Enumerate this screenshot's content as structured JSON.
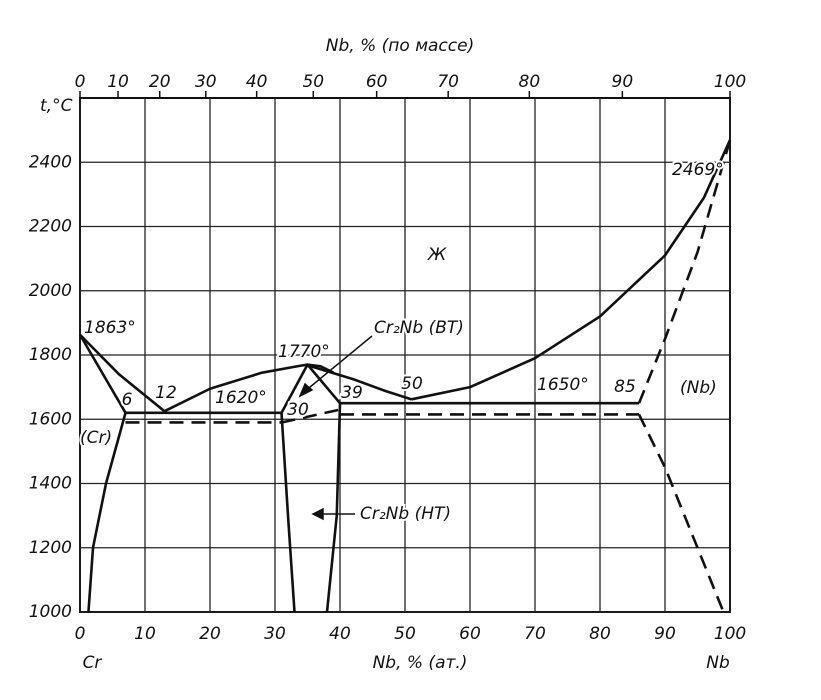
{
  "chart_data": {
    "type": "line",
    "x2label": "Nb, % (по массе)",
    "ylabel": "t,°C",
    "xlabel": "Nb, % (ат.)",
    "xlabel_left": "Cr",
    "xlabel_right": "Nb",
    "xlim": [
      0,
      100
    ],
    "ylim": [
      1000,
      2600
    ],
    "xticks": [
      0,
      10,
      20,
      30,
      40,
      50,
      60,
      70,
      80,
      90,
      100
    ],
    "yticks": [
      1000,
      1200,
      1400,
      1600,
      1800,
      2000,
      2200,
      2400
    ],
    "x2ticks": [
      0,
      {
        "value": 5.85,
        "label": "10"
      },
      {
        "value": 12.27,
        "label": "20"
      },
      {
        "value": 19.35,
        "label": "30"
      },
      {
        "value": 27.18,
        "label": "40"
      },
      {
        "value": 35.89,
        "label": "50"
      },
      {
        "value": 45.64,
        "label": "60"
      },
      {
        "value": 56.64,
        "label": "70"
      },
      {
        "value": 69.13,
        "label": "80"
      },
      {
        "value": 83.44,
        "label": "90"
      },
      100
    ],
    "grid": true,
    "color": "#111111",
    "series": [
      {
        "x": [
          0,
          6,
          13
        ],
        "values": [
          1863,
          1740,
          1625
        ]
      },
      {
        "x": [
          13,
          20,
          28,
          34,
          35,
          37,
          39
        ],
        "values": [
          1625,
          1695,
          1745,
          1767,
          1770,
          1765,
          1745
        ]
      },
      {
        "x": [
          35,
          42,
          47,
          51
        ],
        "values": [
          1768,
          1725,
          1688,
          1662
        ]
      },
      {
        "x": [
          51,
          60,
          70,
          80,
          90,
          96,
          100
        ],
        "values": [
          1662,
          1700,
          1790,
          1920,
          2110,
          2290,
          2469
        ]
      },
      {
        "x": [
          0,
          7
        ],
        "values": [
          1863,
          1620
        ]
      },
      {
        "x": [
          7,
          4,
          2,
          1.3
        ],
        "values": [
          1620,
          1400,
          1200,
          1000
        ]
      },
      {
        "x": [
          7,
          31
        ],
        "values": [
          1620,
          1620
        ]
      },
      {
        "x": [
          31,
          32,
          33
        ],
        "values": [
          1620,
          1300,
          1000
        ]
      },
      {
        "x": [
          31,
          35,
          40
        ],
        "values": [
          1620,
          1770,
          1650
        ]
      },
      {
        "x": [
          40,
          39.5,
          38
        ],
        "values": [
          1650,
          1300,
          1000
        ]
      },
      {
        "x": [
          40,
          86
        ],
        "values": [
          1650,
          1650
        ]
      },
      {
        "x": [
          86,
          90,
          95,
          100
        ],
        "values": [
          1650,
          1850,
          2120,
          2469
        ],
        "dashed": true
      },
      {
        "x": [
          7,
          31
        ],
        "values": [
          1590,
          1590
        ],
        "dashed": true
      },
      {
        "x": [
          31,
          40
        ],
        "values": [
          1590,
          1630
        ],
        "dashed": true
      },
      {
        "x": [
          40,
          86
        ],
        "values": [
          1615,
          1615
        ],
        "dashed": true
      },
      {
        "x": [
          86,
          90,
          95,
          99
        ],
        "values": [
          1615,
          1450,
          1200,
          1000
        ],
        "dashed": true
      }
    ],
    "annotations": [
      "1863°",
      "6",
      "12",
      "1620°",
      "30",
      "1770°",
      "39",
      "50",
      "1650°",
      "85",
      "(Nb)",
      "(Cr)",
      "2469°",
      "Ж",
      "Cr₂Nb (ВТ)",
      "Cr₂Nb (НТ)"
    ]
  }
}
